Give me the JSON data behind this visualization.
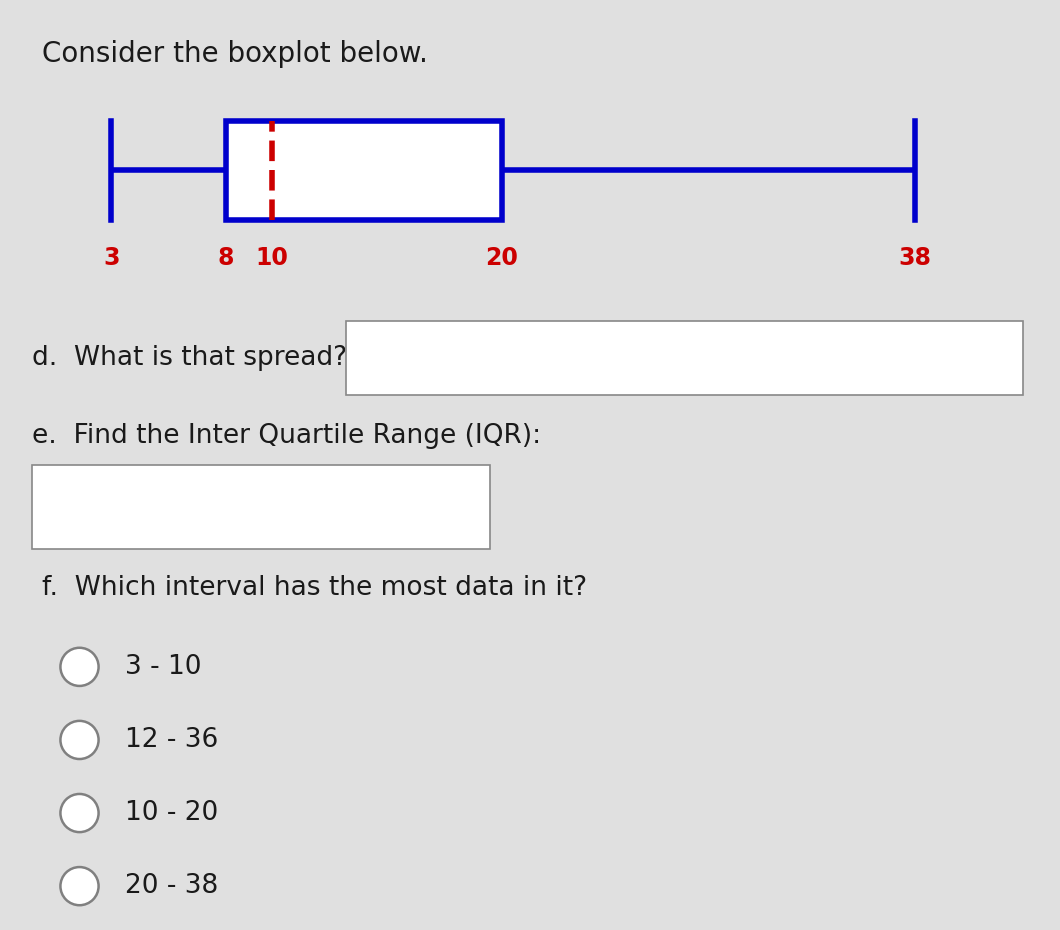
{
  "title": "Consider the boxplot below.",
  "bg_color": "#e0e0e0",
  "white": "#ffffff",
  "boxplot": {
    "min": 3,
    "q1": 8,
    "median": 10,
    "q3": 20,
    "max": 38,
    "box_color": "#0000cc",
    "median_color": "#cc0000",
    "line_width": 4.0
  },
  "label_color": "#cc0000",
  "label_fontsize": 17,
  "question_d": "d.  What is that spread?",
  "question_e": "e.  Find the Inter Quartile Range (IQR):",
  "question_f": "f.  Which interval has the most data in it?",
  "radio_options": [
    "3 - 10",
    "12 - 36",
    "10 - 20",
    "20 - 38"
  ],
  "text_color": "#1a1a1a",
  "text_fontsize": 19,
  "title_fontsize": 20
}
